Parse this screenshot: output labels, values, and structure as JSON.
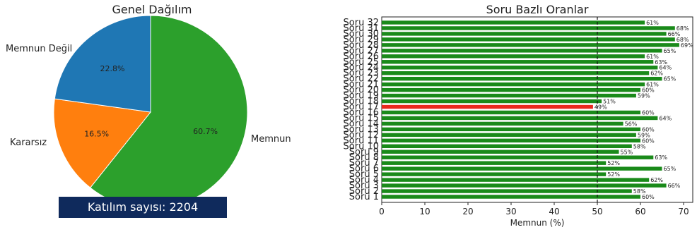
{
  "chart_data": [
    {
      "type": "pie",
      "title": "Genel Dağılım",
      "slices": [
        {
          "label": "Memnun",
          "value": 60.7,
          "pct": "60.7%",
          "color": "#2ca02c"
        },
        {
          "label": "Kararsız",
          "value": 16.5,
          "pct": "16.5%",
          "color": "#ff7f0e"
        },
        {
          "label": "Memnun Değil",
          "value": 22.8,
          "pct": "22.8%",
          "color": "#1f77b4"
        }
      ]
    },
    {
      "type": "bar",
      "orientation": "horizontal",
      "title": "Soru Bazlı Oranlar",
      "xlabel": "Memnun (%)",
      "xlim": [
        0,
        70
      ],
      "xticks": [
        "0",
        "10",
        "20",
        "30",
        "40",
        "50",
        "60",
        "70"
      ],
      "reference_line": 50,
      "colors": {
        "above": "#1a8a1a",
        "below": "#e8281e"
      },
      "categories": [
        "Soru 1",
        "Soru 2",
        "Soru 3",
        "Soru 4",
        "Soru 5",
        "Soru 6",
        "Soru 7",
        "Soru 8",
        "Soru 9",
        "Soru 10",
        "Soru 11",
        "Soru 12",
        "Soru 13",
        "Soru 14",
        "Soru 15",
        "Soru 16",
        "Soru 17",
        "Soru 18",
        "Soru 19",
        "Soru 20",
        "Soru 21",
        "Soru 22",
        "Soru 23",
        "Soru 24",
        "Soru 25",
        "Soru 26",
        "Soru 27",
        "Soru 28",
        "Soru 29",
        "Soru 30",
        "Soru 31",
        "Soru 32"
      ],
      "values": [
        60,
        58,
        66,
        62,
        52,
        65,
        52,
        63,
        55,
        58,
        60,
        59,
        60,
        56,
        64,
        60,
        49,
        51,
        59,
        60,
        61,
        65,
        62,
        64,
        63,
        61,
        65,
        69,
        68,
        66,
        68,
        61
      ],
      "labels": [
        "60%",
        "58%",
        "66%",
        "62%",
        "52%",
        "65%",
        "52%",
        "63%",
        "55%",
        "58%",
        "60%",
        "59%",
        "60%",
        "56%",
        "64%",
        "60%",
        "49%",
        "51%",
        "59%",
        "60%",
        "61%",
        "65%",
        "62%",
        "64%",
        "63%",
        "61%",
        "65%",
        "69%",
        "68%",
        "66%",
        "68%",
        "61%"
      ]
    }
  ],
  "participation": {
    "text": "Katılım sayısı: 2204"
  }
}
